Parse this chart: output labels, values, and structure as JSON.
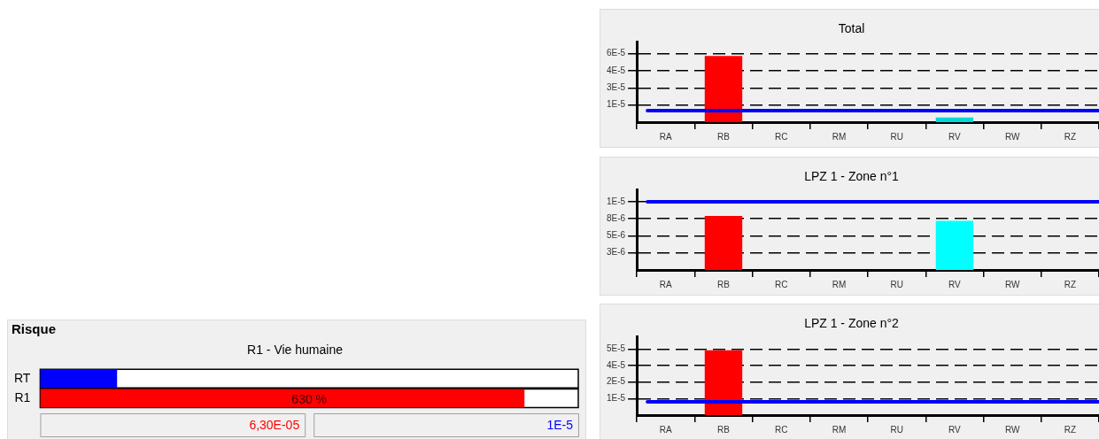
{
  "chart_data": [
    {
      "type": "bar",
      "title": "Total",
      "categories": [
        "RA",
        "RB",
        "RC",
        "RM",
        "RU",
        "RV",
        "RW",
        "RZ"
      ],
      "values": [
        null,
        5.8e-05,
        null,
        null,
        null,
        4e-06,
        null,
        null
      ],
      "colors": [
        null,
        "#ff0000",
        null,
        null,
        null,
        "#00d8d8",
        null,
        null
      ],
      "ylim": [
        0,
        7e-05
      ],
      "yticks": [
        {
          "value": 1.5e-05,
          "label": "1E-5"
        },
        {
          "value": 3e-05,
          "label": "3E-5"
        },
        {
          "value": 4.5e-05,
          "label": "4E-5"
        },
        {
          "value": 6e-05,
          "label": "6E-5"
        }
      ],
      "grid": "y",
      "ref_lines": [
        {
          "axis": "y",
          "value": 1e-05,
          "color": "#0000ff"
        }
      ]
    },
    {
      "type": "bar",
      "title": "LPZ 1 - Zone n°1",
      "categories": [
        "RA",
        "RB",
        "RC",
        "RM",
        "RU",
        "RV",
        "RW",
        "RZ"
      ],
      "values": [
        null,
        7.9e-06,
        null,
        null,
        null,
        7.2e-06,
        null,
        null
      ],
      "colors": [
        null,
        "#ff0000",
        null,
        null,
        null,
        "#00ffff",
        null,
        null
      ],
      "ylim": [
        0,
        1.17e-05
      ],
      "yticks": [
        {
          "value": 2.5e-06,
          "label": "3E-6"
        },
        {
          "value": 5e-06,
          "label": "5E-6"
        },
        {
          "value": 7.5e-06,
          "label": "8E-6"
        },
        {
          "value": 1e-05,
          "label": "1E-5"
        }
      ],
      "grid": "y",
      "ref_lines": [
        {
          "axis": "y",
          "value": 1e-05,
          "color": "#0000ff"
        }
      ]
    },
    {
      "type": "bar",
      "title": "LPZ 1 - Zone n°2",
      "categories": [
        "RA",
        "RB",
        "RC",
        "RM",
        "RU",
        "RV",
        "RW",
        "RZ"
      ],
      "values": [
        null,
        4.9e-05,
        null,
        null,
        null,
        null,
        null,
        null
      ],
      "colors": [
        null,
        "#ff0000",
        null,
        null,
        null,
        null,
        null,
        null
      ],
      "ylim": [
        0,
        5.9e-05
      ],
      "yticks": [
        {
          "value": 1.25e-05,
          "label": "1E-5"
        },
        {
          "value": 2.5e-05,
          "label": "2E-5"
        },
        {
          "value": 3.75e-05,
          "label": "4E-5"
        },
        {
          "value": 5e-05,
          "label": "5E-5"
        }
      ],
      "grid": "y",
      "ref_lines": [
        {
          "axis": "y",
          "value": 1e-05,
          "color": "#0000ff"
        }
      ]
    },
    {
      "type": "bar",
      "orientation": "horizontal",
      "title": "Risque",
      "subtitle": "R1 - Vie humaine",
      "categories": [
        "RT",
        "R1"
      ],
      "values": [
        100,
        630
      ],
      "colors": [
        "#0000ff",
        "#ff0000"
      ],
      "value_labels": [
        null,
        "630 %"
      ],
      "tick_labels": "y",
      "annotations": [
        "6,30E-05",
        "1E-5"
      ]
    }
  ]
}
